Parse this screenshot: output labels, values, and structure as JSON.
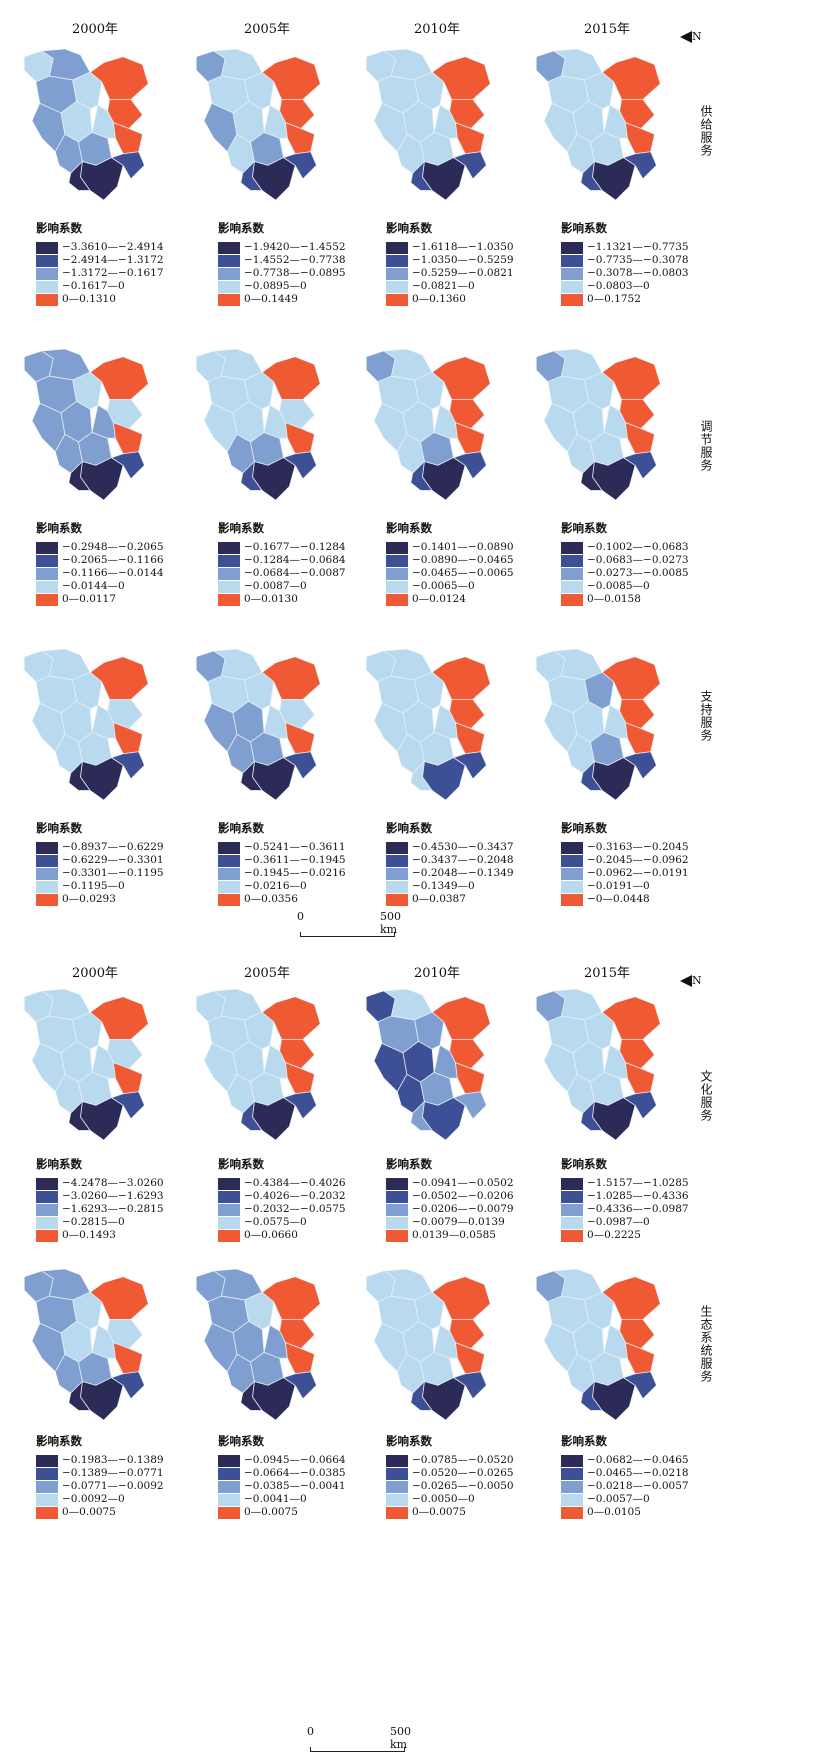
{
  "colors": {
    "c1": "#2c2b57",
    "c2": "#3d4f95",
    "c3": "#7f9fd1",
    "c4": "#b9daee",
    "c5": "#ef5a35",
    "border": "#e7eef5"
  },
  "years": [
    "2000年",
    "2005年",
    "2010年",
    "2015年"
  ],
  "north_label": "N",
  "legend_title": "影响系数",
  "scale": {
    "zero": "0",
    "end": "500 km"
  },
  "panels": [
    {
      "label": "供给服务",
      "maps": [
        {
          "fills": [
            4,
            3,
            3,
            3,
            4,
            4,
            5,
            5,
            3,
            3,
            4,
            5,
            1,
            2,
            1
          ],
          "legend": [
            "−3.3610—−2.4914",
            "−2.4914—−1.3172",
            "−1.3172—−0.1617",
            "−0.1617—0",
            "0—0.1310"
          ]
        },
        {
          "fills": [
            3,
            4,
            4,
            3,
            4,
            4,
            5,
            5,
            4,
            3,
            4,
            5,
            1,
            2,
            2
          ],
          "legend": [
            "−1.9420—−1.4552",
            "−1.4552—−0.7738",
            "−0.7738—−0.0895",
            "−0.0895—0",
            "0—0.1449"
          ]
        },
        {
          "fills": [
            4,
            4,
            4,
            4,
            4,
            4,
            5,
            5,
            4,
            4,
            4,
            5,
            1,
            2,
            2
          ],
          "legend": [
            "−1.6118—−1.0350",
            "−1.0350—−0.5259",
            "−0.5259—−0.0821",
            "−0.0821—0",
            "0—0.1360"
          ]
        },
        {
          "fills": [
            3,
            4,
            4,
            4,
            4,
            4,
            5,
            5,
            4,
            4,
            4,
            5,
            1,
            2,
            2
          ],
          "legend": [
            "−1.1321—−0.7735",
            "−0.7735—−0.3078",
            "−0.3078—−0.0803",
            "−0.0803—0",
            "0—0.1752"
          ]
        }
      ]
    },
    {
      "label": "调节服务",
      "maps": [
        {
          "fills": [
            3,
            3,
            3,
            3,
            3,
            4,
            5,
            4,
            3,
            3,
            3,
            5,
            1,
            2,
            1
          ],
          "legend": [
            "−0.2948—−0.2065",
            "−0.2065—−0.1166",
            "−0.1166—−0.0144",
            "−0.0144—0",
            "0—0.0117"
          ]
        },
        {
          "fills": [
            4,
            4,
            4,
            4,
            4,
            4,
            5,
            4,
            3,
            3,
            4,
            5,
            1,
            2,
            2
          ],
          "legend": [
            "−0.1677—−0.1284",
            "−0.1284—−0.0684",
            "−0.0684—−0.0087",
            "−0.0087—0",
            "0—0.0130"
          ]
        },
        {
          "fills": [
            3,
            4,
            4,
            4,
            4,
            4,
            5,
            5,
            4,
            3,
            4,
            5,
            1,
            2,
            2
          ],
          "legend": [
            "−0.1401—−0.0890",
            "−0.0890—−0.0465",
            "−0.0465—−0.0065",
            "−0.0065—0",
            "0—0.0124"
          ]
        },
        {
          "fills": [
            3,
            4,
            4,
            4,
            4,
            4,
            5,
            5,
            4,
            4,
            4,
            5,
            1,
            2,
            1
          ],
          "legend": [
            "−0.1002—−0.0683",
            "−0.0683—−0.0273",
            "−0.0273—−0.0085",
            "−0.0085—0",
            "0—0.0158"
          ]
        }
      ]
    },
    {
      "label": "支持服务",
      "maps": [
        {
          "fills": [
            4,
            4,
            4,
            4,
            4,
            4,
            5,
            4,
            4,
            4,
            4,
            5,
            1,
            2,
            1
          ],
          "legend": [
            "−0.8937—−0.6229",
            "−0.6229—−0.3301",
            "−0.3301—−0.1195",
            "−0.1195—0",
            "0—0.0293"
          ]
        },
        {
          "fills": [
            3,
            4,
            4,
            3,
            3,
            4,
            5,
            4,
            3,
            3,
            4,
            5,
            1,
            2,
            1
          ],
          "legend": [
            "−0.5241—−0.3611",
            "−0.3611—−0.1945",
            "−0.1945—−0.0216",
            "−0.0216—0",
            "0—0.0356"
          ]
        },
        {
          "fills": [
            4,
            4,
            4,
            4,
            4,
            4,
            5,
            5,
            4,
            4,
            4,
            5,
            2,
            2,
            4
          ],
          "legend": [
            "−0.4530—−0.3437",
            "−0.3437—−0.2048",
            "−0.2048—−0.1349",
            "−0.1349—0",
            "0—0.0387"
          ]
        },
        {
          "fills": [
            4,
            4,
            4,
            4,
            4,
            3,
            5,
            5,
            4,
            3,
            4,
            5,
            1,
            2,
            2
          ],
          "legend": [
            "−0.3163—−0.2045",
            "−0.2045—−0.0962",
            "−0.0962—−0.0191",
            "−0.0191—0",
            "−0—0.0448"
          ]
        }
      ]
    },
    {
      "label": "文化服务",
      "maps": [
        {
          "fills": [
            4,
            4,
            4,
            4,
            4,
            4,
            5,
            4,
            4,
            4,
            4,
            5,
            1,
            2,
            1
          ],
          "legend": [
            "−4.2478—−3.0260",
            "−3.0260—−1.6293",
            "−1.6293—−0.2815",
            "−0.2815—0",
            "0—0.1493"
          ]
        },
        {
          "fills": [
            4,
            4,
            4,
            4,
            4,
            4,
            5,
            5,
            4,
            4,
            4,
            5,
            1,
            2,
            2
          ],
          "legend": [
            "−0.4384—−0.4026",
            "−0.4026—−0.2032",
            "−0.2032—−0.0575",
            "−0.0575—0",
            "0—0.0660"
          ]
        },
        {
          "fills": [
            2,
            4,
            3,
            2,
            2,
            3,
            5,
            5,
            2,
            3,
            3,
            5,
            2,
            3,
            3
          ],
          "legend": [
            "−0.0941—−0.0502",
            "−0.0502—−0.0206",
            "−0.0206—−0.0079",
            "−0.0079—0.0139",
            "0.0139—0.0585"
          ]
        },
        {
          "fills": [
            3,
            4,
            4,
            4,
            4,
            4,
            5,
            5,
            4,
            4,
            4,
            5,
            1,
            2,
            2
          ],
          "legend": [
            "−1.5157—−1.0285",
            "−1.0285—−0.4336",
            "−0.4336—−0.0987",
            "−0.0987—0",
            "0—0.2225"
          ]
        }
      ]
    },
    {
      "label": "生态系统服务",
      "maps": [
        {
          "fills": [
            3,
            3,
            3,
            3,
            4,
            4,
            5,
            4,
            3,
            3,
            4,
            5,
            1,
            2,
            1
          ],
          "legend": [
            "−0.1983—−0.1389",
            "−0.1389—−0.0771",
            "−0.0771—−0.0092",
            "−0.0092—0",
            "0—0.0075"
          ]
        },
        {
          "fills": [
            3,
            3,
            3,
            3,
            3,
            4,
            5,
            5,
            3,
            3,
            3,
            5,
            1,
            2,
            1
          ],
          "legend": [
            "−0.0945—−0.0664",
            "−0.0664—−0.0385",
            "−0.0385—−0.0041",
            "−0.0041—0",
            "0—0.0075"
          ]
        },
        {
          "fills": [
            4,
            4,
            4,
            4,
            4,
            4,
            5,
            5,
            4,
            4,
            4,
            5,
            1,
            2,
            2
          ],
          "legend": [
            "−0.0785—−0.0520",
            "−0.0520—−0.0265",
            "−0.0265—−0.0050",
            "−0.0050—0",
            "0—0.0075"
          ]
        },
        {
          "fills": [
            3,
            4,
            4,
            4,
            4,
            4,
            5,
            5,
            4,
            4,
            4,
            5,
            1,
            2,
            2
          ],
          "legend": [
            "−0.0682—−0.0465",
            "−0.0465—−0.0218",
            "−0.0218—−0.0057",
            "−0.0057—0",
            "0—0.0105"
          ]
        }
      ]
    }
  ]
}
